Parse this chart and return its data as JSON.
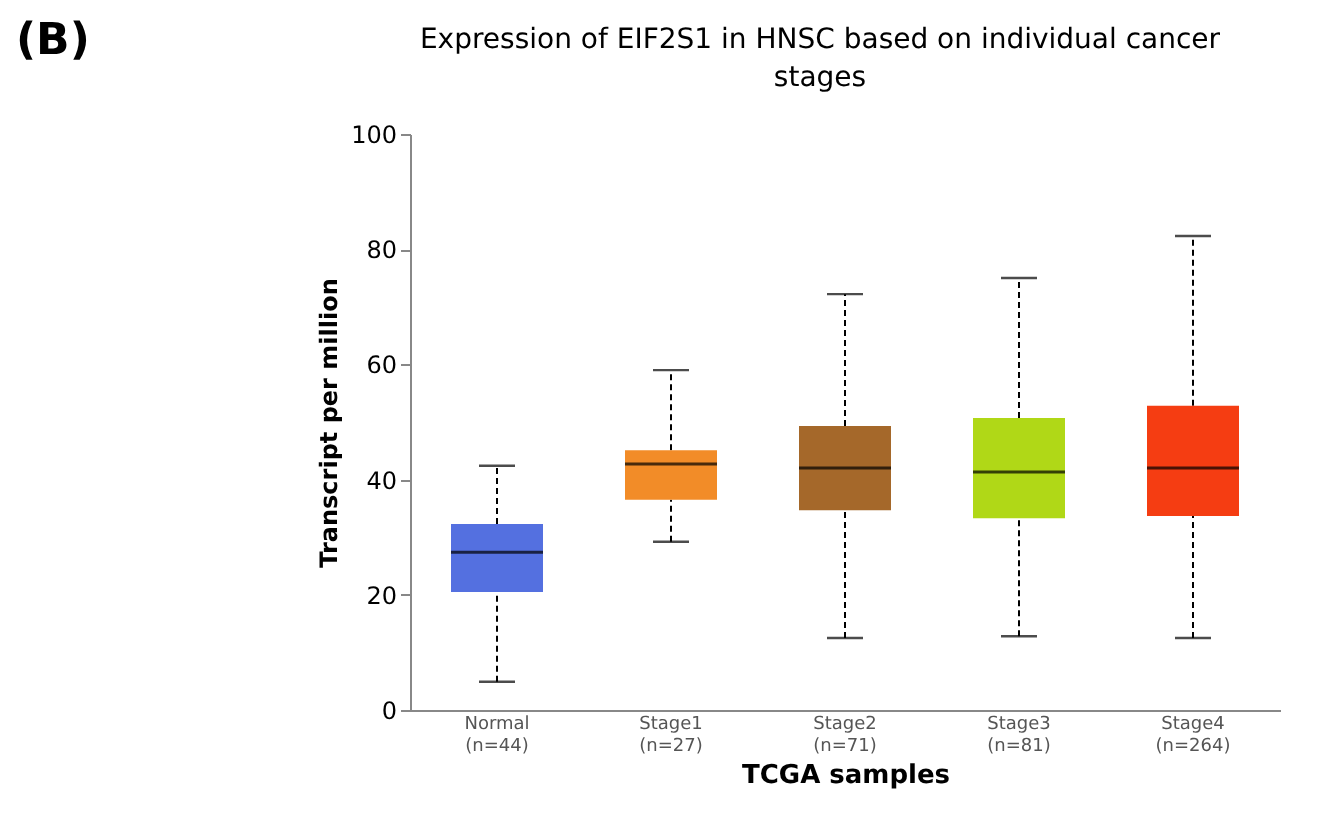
{
  "chart_data": {
    "type": "box",
    "title": [
      "Expression of EIF2S1 in HNSC based on individual cancer",
      "stages"
    ],
    "xlabel": "TCGA samples",
    "ylabel": "Transcript per million",
    "categories": [
      "Normal\n(n=44)",
      "Stage1\n(n=27)",
      "Stage2\n(n=71)",
      "Stage3\n(n=81)",
      "Stage4\n(n=264)"
    ],
    "boxes": [
      {
        "low": 4.9,
        "q1": 20.5,
        "median": 27.4,
        "q3": 32.3,
        "high": 42.4
      },
      {
        "low": 29.2,
        "q1": 36.5,
        "median": 42.7,
        "q3": 45.1,
        "high": 59.0
      },
      {
        "low": 12.5,
        "q1": 34.7,
        "median": 42.0,
        "q3": 49.3,
        "high": 72.2
      },
      {
        "low": 12.8,
        "q1": 33.3,
        "median": 41.3,
        "q3": 50.7,
        "high": 75.0
      },
      {
        "low": 12.5,
        "q1": 33.7,
        "median": 42.0,
        "q3": 52.8,
        "high": 82.3
      }
    ],
    "colors": [
      "#5470e0",
      "#f28c28",
      "#a5682a",
      "#b0d817",
      "#f53d12"
    ],
    "ylim": [
      0,
      100
    ],
    "yticks": [
      0,
      20,
      40,
      60,
      80,
      100
    ],
    "grid": false,
    "annotations": [
      "(B)"
    ]
  }
}
